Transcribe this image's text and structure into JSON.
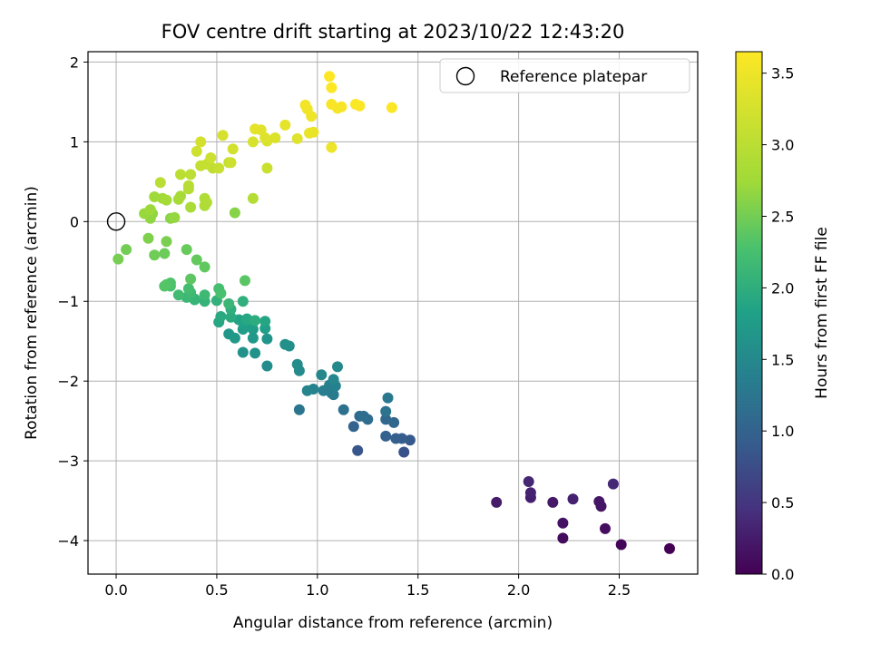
{
  "chart_data": {
    "type": "scatter",
    "title": "FOV centre drift starting at 2023/10/22 12:43:20",
    "xlabel": "Angular distance from reference (arcmin)",
    "ylabel": "Rotation from reference (arcmin)",
    "xlim": [
      -0.14,
      2.89
    ],
    "ylim": [
      -4.42,
      2.13
    ],
    "xticks": [
      "0.0",
      "0.5",
      "1.0",
      "1.5",
      "2.0",
      "2.5"
    ],
    "yticks": [
      "−4",
      "−3",
      "−2",
      "−1",
      "0",
      "1",
      "2"
    ],
    "grid": true,
    "legend": {
      "position": "upper-right",
      "entries": [
        "Reference platepar"
      ]
    },
    "reference_point": {
      "name": "Reference platepar",
      "x": 0.0,
      "y": 0.0
    },
    "colorbar": {
      "label": "Hours from first FF file",
      "range": [
        0.0,
        3.65
      ],
      "ticks": [
        "0.0",
        "0.5",
        "1.0",
        "1.5",
        "2.0",
        "2.5",
        "3.0",
        "3.5"
      ],
      "colormap": "viridis"
    },
    "series": [
      {
        "points": [
          [
            2.75,
            -4.1,
            0.0
          ],
          [
            2.51,
            -4.05,
            0.05
          ],
          [
            2.22,
            -3.97,
            0.1
          ],
          [
            2.43,
            -3.85,
            0.12
          ],
          [
            2.22,
            -3.78,
            0.15
          ],
          [
            2.41,
            -3.57,
            0.18
          ],
          [
            2.4,
            -3.51,
            0.2
          ],
          [
            2.17,
            -3.52,
            0.22
          ],
          [
            1.89,
            -3.52,
            0.24
          ],
          [
            2.06,
            -3.46,
            0.27
          ],
          [
            2.27,
            -3.48,
            0.3
          ],
          [
            2.06,
            -3.4,
            0.32
          ],
          [
            2.05,
            -3.26,
            0.35
          ],
          [
            2.47,
            -3.29,
            0.37
          ],
          [
            1.43,
            -2.89,
            0.82
          ],
          [
            1.2,
            -2.87,
            0.85
          ],
          [
            1.46,
            -2.74,
            0.88
          ],
          [
            1.42,
            -2.72,
            0.92
          ],
          [
            1.39,
            -2.72,
            0.95
          ],
          [
            1.34,
            -2.69,
            0.98
          ],
          [
            1.18,
            -2.57,
            1.02
          ],
          [
            1.38,
            -2.52,
            1.05
          ],
          [
            1.34,
            -2.48,
            1.08
          ],
          [
            1.21,
            -2.44,
            1.1
          ],
          [
            1.25,
            -2.48,
            1.12
          ],
          [
            1.23,
            -2.44,
            1.15
          ],
          [
            1.13,
            -2.36,
            1.18
          ],
          [
            1.34,
            -2.38,
            1.22
          ],
          [
            0.91,
            -2.36,
            1.25
          ],
          [
            1.35,
            -2.21,
            1.28
          ],
          [
            1.08,
            -2.17,
            1.3
          ],
          [
            1.07,
            -2.15,
            1.33
          ],
          [
            1.03,
            -2.12,
            1.35
          ],
          [
            1.06,
            -2.05,
            1.37
          ],
          [
            1.09,
            -2.06,
            1.4
          ],
          [
            0.98,
            -2.1,
            1.42
          ],
          [
            0.95,
            -2.12,
            1.44
          ],
          [
            1.08,
            -1.98,
            1.46
          ],
          [
            1.02,
            -1.92,
            1.48
          ],
          [
            1.1,
            -1.82,
            1.5
          ],
          [
            0.91,
            -1.87,
            1.52
          ],
          [
            0.9,
            -1.79,
            1.54
          ],
          [
            0.75,
            -1.81,
            1.56
          ],
          [
            0.86,
            -1.56,
            1.58
          ],
          [
            0.84,
            -1.54,
            1.6
          ],
          [
            0.63,
            -1.64,
            1.62
          ],
          [
            0.69,
            -1.65,
            1.64
          ],
          [
            0.75,
            -1.47,
            1.66
          ],
          [
            0.56,
            -1.41,
            1.68
          ],
          [
            0.68,
            -1.46,
            1.7
          ],
          [
            0.59,
            -1.46,
            1.72
          ],
          [
            0.68,
            -1.35,
            1.74
          ],
          [
            0.63,
            -1.35,
            1.76
          ],
          [
            0.74,
            -1.34,
            1.78
          ],
          [
            0.67,
            -1.31,
            1.8
          ],
          [
            0.63,
            -1.26,
            1.82
          ],
          [
            0.65,
            -1.22,
            1.84
          ],
          [
            0.61,
            -1.23,
            1.86
          ],
          [
            0.74,
            -1.25,
            1.88
          ],
          [
            0.51,
            -1.26,
            1.9
          ],
          [
            0.65,
            -1.23,
            1.92
          ],
          [
            0.52,
            -1.19,
            1.94
          ],
          [
            0.57,
            -1.2,
            1.96
          ],
          [
            0.69,
            -1.24,
            1.98
          ],
          [
            0.57,
            -1.1,
            2.0
          ],
          [
            0.63,
            -1.0,
            2.02
          ],
          [
            0.5,
            -0.99,
            2.04
          ],
          [
            0.44,
            -1.0,
            2.06
          ],
          [
            0.39,
            -0.97,
            2.08
          ],
          [
            0.39,
            -0.98,
            2.1
          ],
          [
            0.56,
            -1.03,
            2.12
          ],
          [
            0.35,
            -0.95,
            2.14
          ],
          [
            0.44,
            -0.92,
            2.16
          ],
          [
            0.37,
            -0.89,
            2.18
          ],
          [
            0.31,
            -0.92,
            2.2
          ],
          [
            0.36,
            -0.84,
            2.22
          ],
          [
            0.51,
            -0.84,
            2.24
          ],
          [
            0.52,
            -0.9,
            2.26
          ],
          [
            0.27,
            -0.81,
            2.28
          ],
          [
            0.27,
            -0.77,
            2.3
          ],
          [
            0.25,
            -0.79,
            2.32
          ],
          [
            0.24,
            -0.81,
            2.34
          ],
          [
            0.64,
            -0.74,
            2.36
          ],
          [
            0.37,
            -0.72,
            2.38
          ],
          [
            0.44,
            -0.57,
            2.4
          ],
          [
            0.4,
            -0.48,
            2.42
          ],
          [
            0.35,
            -0.35,
            2.44
          ],
          [
            0.24,
            -0.4,
            2.46
          ],
          [
            0.19,
            -0.42,
            2.48
          ],
          [
            0.05,
            -0.35,
            2.5
          ],
          [
            0.01,
            -0.47,
            2.52
          ],
          [
            0.25,
            -0.25,
            2.54
          ],
          [
            0.16,
            -0.21,
            2.56
          ],
          [
            0.59,
            0.11,
            2.6
          ],
          [
            0.27,
            0.04,
            2.62
          ],
          [
            0.18,
            0.1,
            2.64
          ],
          [
            0.17,
            0.04,
            2.66
          ],
          [
            0.29,
            0.05,
            2.68
          ],
          [
            0.14,
            0.1,
            2.7
          ],
          [
            0.17,
            0.15,
            2.72
          ],
          [
            0.19,
            0.31,
            2.74
          ],
          [
            0.23,
            0.29,
            2.76
          ],
          [
            0.25,
            0.27,
            2.78
          ],
          [
            0.31,
            0.28,
            2.8
          ],
          [
            0.32,
            0.32,
            2.82
          ],
          [
            0.37,
            0.18,
            2.84
          ],
          [
            0.44,
            0.2,
            2.86
          ],
          [
            0.44,
            0.29,
            2.88
          ],
          [
            0.45,
            0.24,
            2.9
          ],
          [
            0.68,
            0.29,
            2.92
          ],
          [
            0.36,
            0.41,
            2.94
          ],
          [
            0.36,
            0.45,
            2.96
          ],
          [
            0.22,
            0.49,
            2.98
          ],
          [
            0.32,
            0.59,
            3.0
          ],
          [
            0.37,
            0.59,
            3.02
          ],
          [
            0.48,
            0.67,
            3.04
          ],
          [
            0.56,
            0.74,
            3.06
          ],
          [
            0.42,
            0.7,
            3.08
          ],
          [
            0.45,
            0.72,
            3.1
          ],
          [
            0.51,
            0.67,
            3.12
          ],
          [
            0.75,
            0.67,
            3.14
          ],
          [
            0.47,
            0.8,
            3.16
          ],
          [
            0.57,
            0.74,
            3.18
          ],
          [
            0.4,
            0.88,
            3.2
          ],
          [
            0.58,
            0.91,
            3.22
          ],
          [
            0.42,
            1.0,
            3.24
          ],
          [
            0.53,
            1.08,
            3.26
          ],
          [
            0.68,
            1.0,
            3.28
          ],
          [
            0.75,
            1.01,
            3.3
          ],
          [
            0.79,
            1.05,
            3.32
          ],
          [
            0.74,
            1.05,
            3.34
          ],
          [
            0.9,
            1.04,
            3.36
          ],
          [
            0.72,
            1.15,
            3.38
          ],
          [
            0.69,
            1.16,
            3.4
          ],
          [
            0.84,
            1.21,
            3.42
          ],
          [
            0.96,
            1.11,
            3.44
          ],
          [
            0.98,
            1.12,
            3.46
          ],
          [
            1.07,
            0.93,
            3.48
          ],
          [
            0.97,
            1.32,
            3.5
          ],
          [
            0.95,
            1.41,
            3.52
          ],
          [
            0.94,
            1.46,
            3.54
          ],
          [
            1.1,
            1.42,
            3.56
          ],
          [
            1.12,
            1.44,
            3.58
          ],
          [
            1.07,
            1.47,
            3.6
          ],
          [
            1.21,
            1.45,
            3.61
          ],
          [
            1.19,
            1.47,
            3.62
          ],
          [
            1.37,
            1.43,
            3.63
          ],
          [
            1.07,
            1.68,
            3.64
          ],
          [
            1.06,
            1.82,
            3.65
          ]
        ]
      }
    ]
  }
}
